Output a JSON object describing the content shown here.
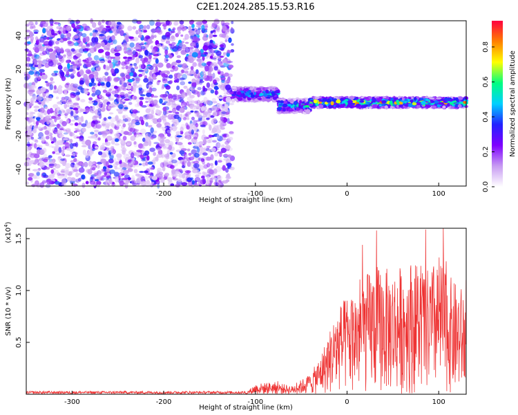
{
  "title": "C2E1.2024.285.15.53.R16",
  "chart_data": [
    {
      "type": "heatmap",
      "title": "C2E1.2024.285.15.53.R16",
      "xlabel": "Height of straight line (km)",
      "ylabel": "Frequency (Hz)",
      "xlim": [
        -350,
        130
      ],
      "ylim": [
        -50,
        49
      ],
      "x_ticks": [
        -300,
        -200,
        -100,
        0,
        100
      ],
      "y_ticks": [
        -40,
        -20,
        0,
        20,
        40
      ],
      "colorbar": {
        "label": "Normalized spectral amplitude",
        "range": [
          0.0,
          0.95
        ],
        "ticks": [
          0.0,
          0.2,
          0.4,
          0.6,
          0.8
        ],
        "colors": [
          "#ffffff",
          "#c79bf2",
          "#7f00ff",
          "#2222ff",
          "#00d0ff",
          "#00ff80",
          "#ffff00",
          "#ff8000",
          "#ff0040"
        ]
      },
      "features": [
        {
          "x_range": [
            -350,
            -125
          ],
          "freq_range": [
            -50,
            49
          ],
          "amplitude": 0.1,
          "description_type": "broadband-noise"
        },
        {
          "x_range": [
            -125,
            -75
          ],
          "freq_center": 5,
          "freq_halfwidth": 4,
          "amplitude": 0.4
        },
        {
          "x_range": [
            -75,
            -40
          ],
          "freq_center": -2,
          "freq_halfwidth": 4,
          "amplitude": 0.45
        },
        {
          "x_range": [
            -40,
            130
          ],
          "freq_center": 0,
          "freq_halfwidth": 3,
          "amplitude": 0.6
        }
      ]
    },
    {
      "type": "line",
      "xlabel": "Height of straight line (km)",
      "ylabel": "SNR (10 * v/v)",
      "ylabel_exponent": "(x10",
      "ylabel_exponent_power": "4",
      "ylabel_exponent_close": ")",
      "xlim": [
        -350,
        130
      ],
      "ylim": [
        0,
        1.6
      ],
      "x_ticks": [
        -300,
        -200,
        -100,
        0,
        100
      ],
      "y_ticks": [
        0.5,
        1.0,
        1.5
      ],
      "y_tick_labels": [
        "0.5",
        "1.0",
        "1.5"
      ],
      "color": "#ee3333",
      "series_envelope": [
        {
          "x": -350,
          "y": 0.02
        },
        {
          "x": -110,
          "y": 0.02
        },
        {
          "x": -100,
          "y": 0.1
        },
        {
          "x": -80,
          "y": 0.12
        },
        {
          "x": -60,
          "y": 0.08
        },
        {
          "x": -40,
          "y": 0.2
        },
        {
          "x": -30,
          "y": 0.35
        },
        {
          "x": -20,
          "y": 0.6
        },
        {
          "x": -10,
          "y": 0.85
        },
        {
          "x": 10,
          "y": 1.05
        },
        {
          "x": 30,
          "y": 1.25
        },
        {
          "x": 50,
          "y": 1.2
        },
        {
          "x": 70,
          "y": 1.3
        },
        {
          "x": 90,
          "y": 1.2
        },
        {
          "x": 100,
          "y": 1.35
        },
        {
          "x": 115,
          "y": 1.1
        },
        {
          "x": 130,
          "y": 1.0
        }
      ]
    }
  ]
}
